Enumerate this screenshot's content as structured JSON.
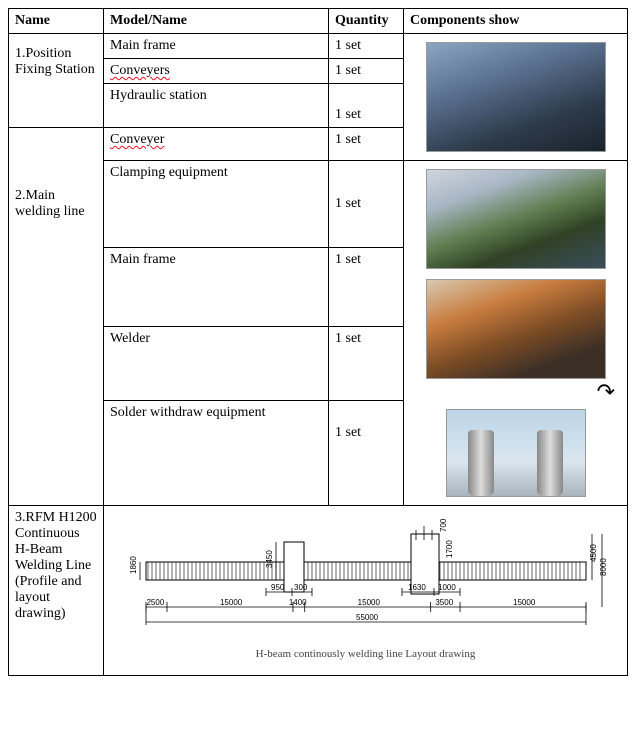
{
  "headers": {
    "name": "Name",
    "model": "Model/Name",
    "qty": "Quantity",
    "comp": "Components show"
  },
  "sections": [
    {
      "name": "1.Position Fixing Station",
      "rows": [
        {
          "model": "Main frame",
          "qty": "1 set",
          "spell": false
        },
        {
          "model": "Conveyers",
          "qty": "1 set",
          "spell": true
        },
        {
          "model": "Hydraulic station",
          "qty": "1 set",
          "spell": false
        }
      ]
    },
    {
      "name": "2.Main welding line",
      "rows": [
        {
          "model": "Conveyer",
          "qty": "1 set",
          "spell": true
        },
        {
          "model": "Clamping equipment",
          "qty": "1 set",
          "spell": false
        },
        {
          "model": "Main frame",
          "qty": "1 set",
          "spell": false
        },
        {
          "model": "Welder",
          "qty": "1 set",
          "spell": false
        },
        {
          "model": "Solder withdraw equipment",
          "qty": "1 set",
          "spell": false
        }
      ]
    }
  ],
  "section3": {
    "name": "3.RFM H1200 Continuous H-Beam Welding Line (Profile and layout drawing)",
    "caption": "H-beam continously welding line Layout drawing"
  },
  "diagram": {
    "total_length": 55000,
    "segments_bottom": [
      2500,
      15000,
      1400,
      15000,
      3500,
      15000
    ],
    "mid_dims": [
      950,
      300,
      1630,
      1000
    ],
    "left_heights": [
      1860,
      3450
    ],
    "right_heights": [
      700,
      1700,
      4500,
      8000
    ]
  },
  "images": {
    "img1_alt": "position-fixing-station-photo",
    "img2_alt": "clamping-equipment-photo",
    "img3_alt": "welding-line-photo",
    "img4_alt": "solder-withdraw-photo"
  }
}
